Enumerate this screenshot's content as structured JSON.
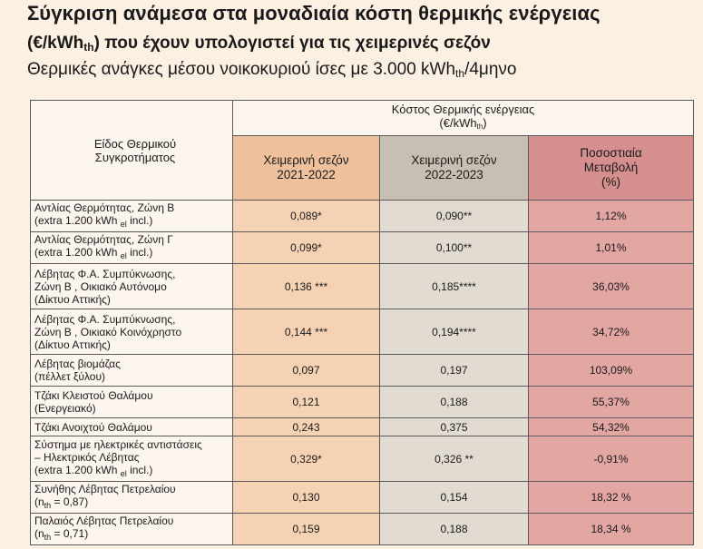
{
  "title": {
    "line1": "Σύγκριση ανάμεσα στα μοναδιαία κόστη θερμικής ενέργειας",
    "line2_pre": "(€/kWh",
    "line2_sub": "th",
    "line2_post": ") που έχουν υπολογιστεί για τις χειμερινές σεζόν",
    "line3_pre": "Θερμικές ανάγκες μέσου νοικοκυριού ίσες με 3.000 kWh",
    "line3_sub": "th",
    "line3_post": "/4μηνο"
  },
  "header": {
    "type_line1": "Είδος Θερμικού",
    "type_line2": "Συγκροτήματος",
    "group_line1": "Κόστος Θερμικής ενέργειας",
    "group_line2_pre": "(€/kWh",
    "group_line2_sub": "th",
    "group_line2_post": ")",
    "season1_line1": "Χειμερινή σεζόν",
    "season1_line2": "2021-2022",
    "season2_line1": "Χειμερινή σεζόν",
    "season2_line2": "2022-2023",
    "change_line1": "Ποσοστιαία",
    "change_line2": "Μεταβολή",
    "change_line3": "(%)"
  },
  "rows": [
    {
      "name_lines": [
        {
          "pre": "Αντλίας Θερμότητας, Ζώνη Β",
          "sub": "",
          "post": ""
        },
        {
          "pre": "(extra 1.200 kWh ",
          "sub": "el",
          "post": " incl.)"
        }
      ],
      "v1": "0,089*",
      "v2": "0,090**",
      "change": "1,12%"
    },
    {
      "name_lines": [
        {
          "pre": "Αντλίας Θερμότητας, Ζώνη Γ",
          "sub": "",
          "post": ""
        },
        {
          "pre": "(extra 1.200 kWh ",
          "sub": "el",
          "post": " incl.)"
        }
      ],
      "v1": "0,099*",
      "v2": "0,100**",
      "change": "1,01%"
    },
    {
      "name_lines": [
        {
          "pre": "Λέβητας Φ.Α. Συμπύκνωσης,",
          "sub": "",
          "post": ""
        },
        {
          "pre": "Ζώνη Β , Οικιακό Αυτόνομο",
          "sub": "",
          "post": ""
        },
        {
          "pre": "(Δίκτυο Αττικής)",
          "sub": "",
          "post": ""
        }
      ],
      "v1": "0,136 ***",
      "v2": "0,185****",
      "change": "36,03%"
    },
    {
      "name_lines": [
        {
          "pre": "Λέβητας Φ.Α. Συμπύκνωσης,",
          "sub": "",
          "post": ""
        },
        {
          "pre": "Ζώνη Β , Οικιακό  Κοινόχρηστο",
          "sub": "",
          "post": ""
        },
        {
          "pre": "(Δίκτυο Αττικής)",
          "sub": "",
          "post": ""
        }
      ],
      "v1": "0,144 ***",
      "v2": "0,194****",
      "change": "34,72%"
    },
    {
      "name_lines": [
        {
          "pre": "Λέβητας βιομάζας",
          "sub": "",
          "post": ""
        },
        {
          "pre": "(πέλλετ ξύλου)",
          "sub": "",
          "post": ""
        }
      ],
      "v1": "0,097",
      "v2": "0,197",
      "change": "103,09%"
    },
    {
      "name_lines": [
        {
          "pre": "Τζάκι Κλειστού Θαλάμου",
          "sub": "",
          "post": ""
        },
        {
          "pre": "(Ενεργειακό)",
          "sub": "",
          "post": ""
        }
      ],
      "v1": "0,121",
      "v2": "0,188",
      "change": "55,37%"
    },
    {
      "name_lines": [
        {
          "pre": "Τζάκι Ανοιχτού Θαλάμου",
          "sub": "",
          "post": ""
        }
      ],
      "v1": "0,243",
      "v2": "0,375",
      "change": "54,32%"
    },
    {
      "name_lines": [
        {
          "pre": "Σύστημα με ηλεκτρικές αντιστάσεις",
          "sub": "",
          "post": ""
        },
        {
          "pre": "– Ηλεκτρικός Λέβητας",
          "sub": "",
          "post": ""
        },
        {
          "pre": "(extra 1.200 kWh ",
          "sub": "el",
          "post": " incl.)"
        }
      ],
      "v1": "0,329*",
      "v2": "0,326 **",
      "change": "-0,91%"
    },
    {
      "name_lines": [
        {
          "pre": "Συνήθης Λέβητας Πετρελαίου",
          "sub": "",
          "post": ""
        },
        {
          "pre": "(n",
          "sub": "th",
          "post": " = 0,87)"
        }
      ],
      "v1": "0,130",
      "v2": "0,154",
      "change": "18,32 %"
    },
    {
      "name_lines": [
        {
          "pre": "Παλαιός Λέβητας Πετρελαίου",
          "sub": "",
          "post": ""
        },
        {
          "pre": "(n",
          "sub": "th",
          "post": " = 0,71)"
        }
      ],
      "v1": "0,159",
      "v2": "0,188",
      "change": "18,34 %"
    }
  ]
}
